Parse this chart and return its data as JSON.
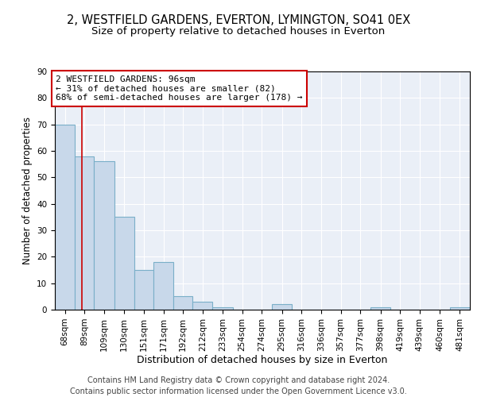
{
  "title1": "2, WESTFIELD GARDENS, EVERTON, LYMINGTON, SO41 0EX",
  "title2": "Size of property relative to detached houses in Everton",
  "xlabel": "Distribution of detached houses by size in Everton",
  "ylabel": "Number of detached properties",
  "bar_edges": [
    68,
    89,
    109,
    130,
    151,
    171,
    192,
    212,
    233,
    254,
    274,
    295,
    316,
    336,
    357,
    377,
    398,
    419,
    439,
    460,
    481
  ],
  "bar_heights": [
    70,
    58,
    56,
    35,
    15,
    18,
    5,
    3,
    1,
    0,
    0,
    2,
    0,
    0,
    0,
    0,
    1,
    0,
    0,
    0,
    1
  ],
  "bar_color": "#c8d8ea",
  "bar_edge_color": "#7aafc8",
  "bar_linewidth": 0.8,
  "subject_size": 96,
  "red_line_color": "#cc0000",
  "annotation_line1": "2 WESTFIELD GARDENS: 96sqm",
  "annotation_line2": "← 31% of detached houses are smaller (82)",
  "annotation_line3": "68% of semi-detached houses are larger (178) →",
  "annotation_box_color": "white",
  "annotation_box_edge": "#cc0000",
  "ylim": [
    0,
    90
  ],
  "yticks": [
    0,
    10,
    20,
    30,
    40,
    50,
    60,
    70,
    80,
    90
  ],
  "bg_color": "#eaeff7",
  "grid_color": "white",
  "footer1": "Contains HM Land Registry data © Crown copyright and database right 2024.",
  "footer2": "Contains public sector information licensed under the Open Government Licence v3.0.",
  "title1_fontsize": 10.5,
  "title2_fontsize": 9.5,
  "xlabel_fontsize": 9,
  "ylabel_fontsize": 8.5,
  "tick_fontsize": 7.5,
  "annotation_fontsize": 8,
  "footer_fontsize": 7
}
